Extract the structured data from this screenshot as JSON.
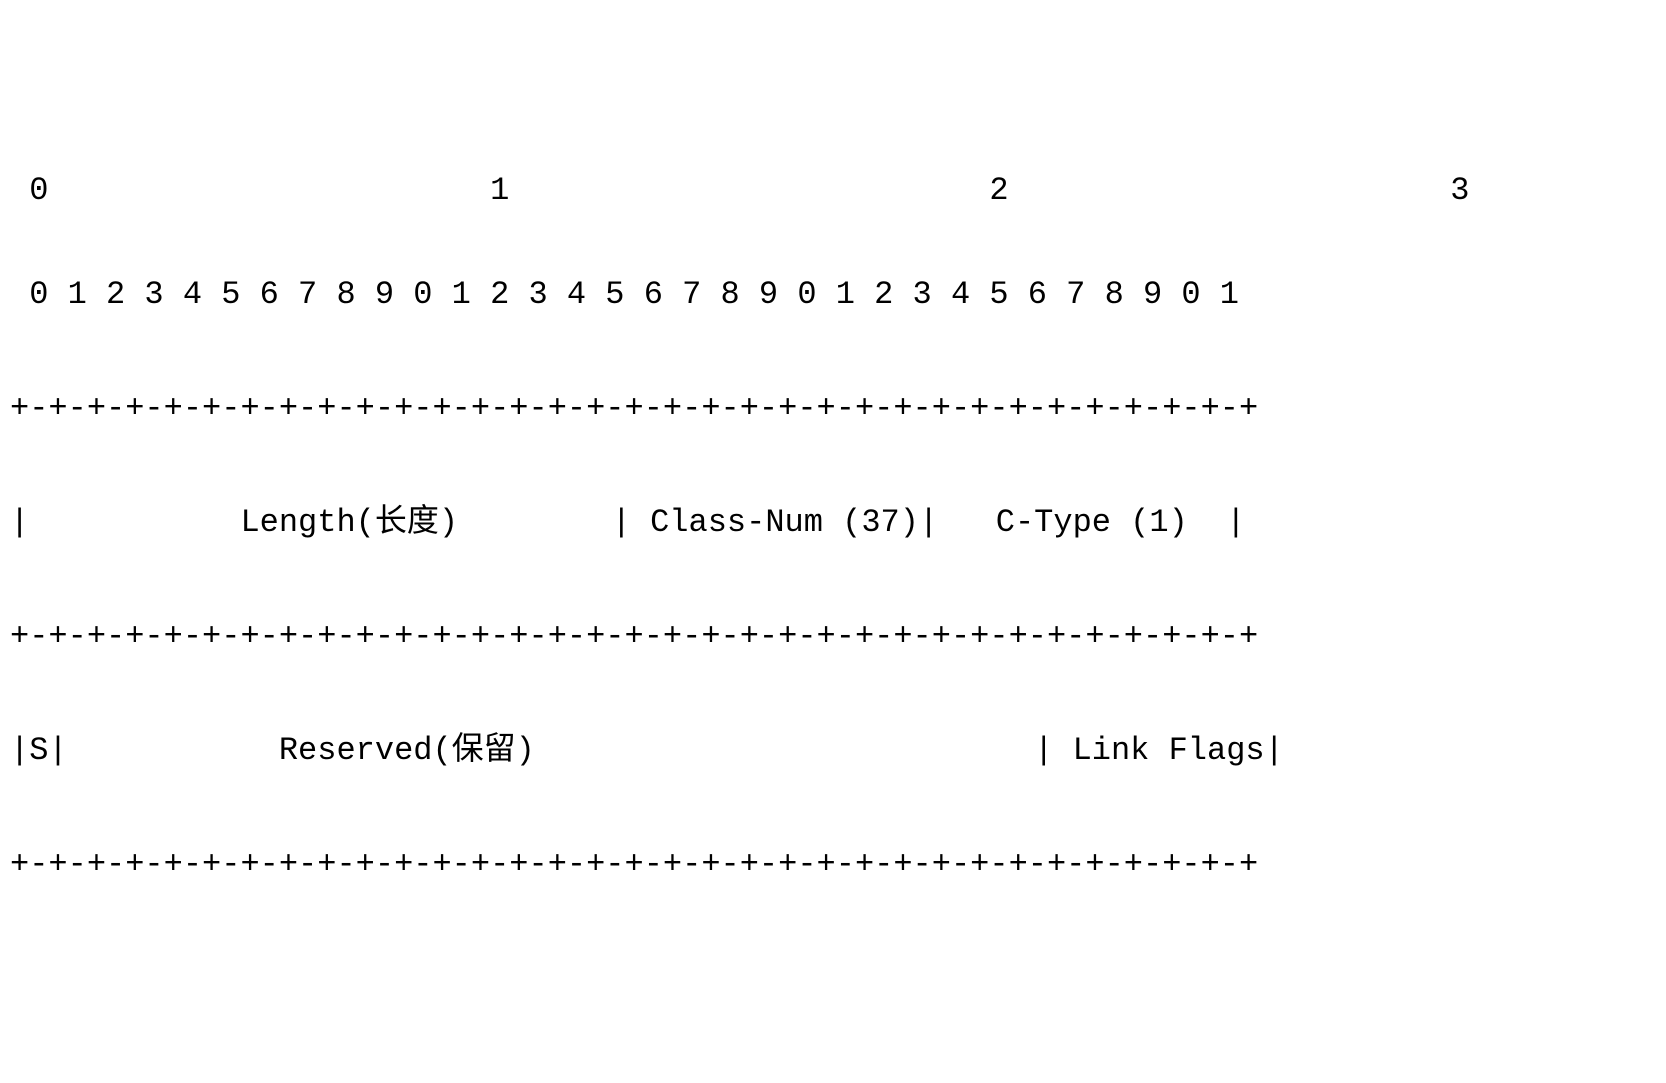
{
  "diagram": {
    "type": "packet-format",
    "background_color": "#ffffff",
    "text_color": "#000000",
    "font_family": "Courier New",
    "font_size": 32,
    "byte_header": {
      "labels": [
        " 0",
        "1",
        "2",
        "3"
      ]
    },
    "bit_header": {
      "text": " 0 1 2 3 4 5 6 7 8 9 0 1 2 3 4 5 6 7 8 9 0 1 2 3 4 5 6 7 8 9 0 1"
    },
    "separator": "+-+-+-+-+-+-+-+-+-+-+-+-+-+-+-+-+-+-+-+-+-+-+-+-+-+-+-+-+-+-+-+-+",
    "row1": {
      "text": "|           Length(长度)        | Class-Num (37)|   C-Type (1)  |",
      "fields": [
        {
          "name": "Length(长度)",
          "bits": 16
        },
        {
          "name": "Class-Num (37)",
          "bits": 8
        },
        {
          "name": "C-Type (1)",
          "bits": 8
        }
      ]
    },
    "row2": {
      "text": "|S|           Reserved(保留)                          | Link Flags|",
      "fields": [
        {
          "name": "S",
          "bits": 1
        },
        {
          "name": "Reserved(保留)",
          "bits": 25
        },
        {
          "name": "Link Flags",
          "bits": 6
        }
      ]
    }
  }
}
